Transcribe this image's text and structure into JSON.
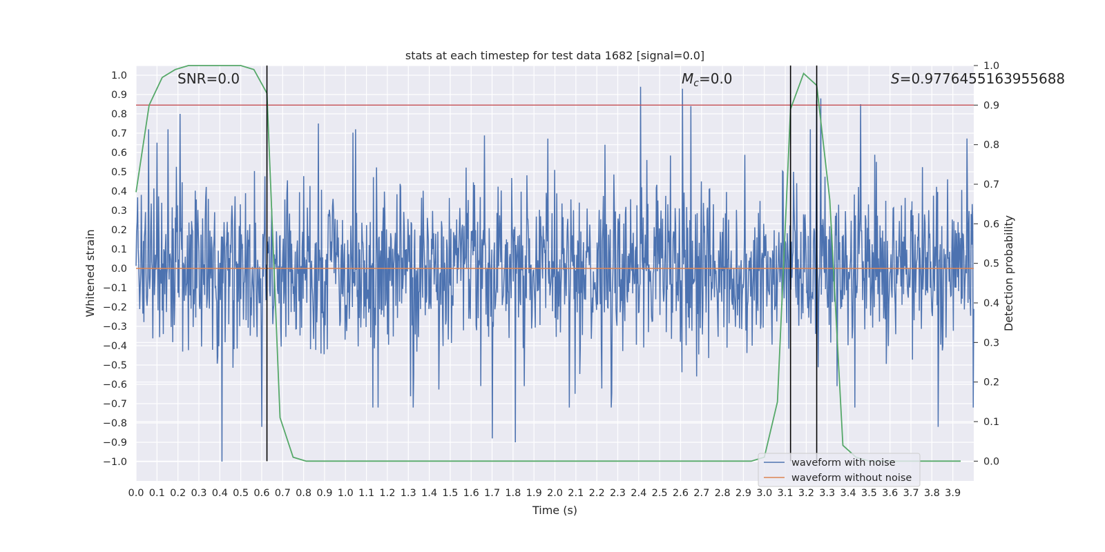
{
  "chart_data": {
    "type": "line",
    "title": "stats at each timestep for test data 1682 [signal=0.0]",
    "xlabel": "Time (s)",
    "ylabel": "Whitened strain",
    "y2label": "Detection probability",
    "xlim": [
      0.0,
      4.0
    ],
    "ylim": [
      -1.1,
      1.05
    ],
    "y2lim": [
      -0.05,
      1.0
    ],
    "x_ticks": [
      "0.0",
      "0.1",
      "0.2",
      "0.3",
      "0.4",
      "0.5",
      "0.6",
      "0.7",
      "0.8",
      "0.9",
      "1.0",
      "1.1",
      "1.2",
      "1.3",
      "1.4",
      "1.5",
      "1.6",
      "1.7",
      "1.8",
      "1.9",
      "2.0",
      "2.1",
      "2.2",
      "2.3",
      "2.4",
      "2.5",
      "2.6",
      "2.7",
      "2.8",
      "2.9",
      "3.0",
      "3.1",
      "3.2",
      "3.3",
      "3.4",
      "3.5",
      "3.6",
      "3.7",
      "3.8",
      "3.9"
    ],
    "y_ticks": [
      "1.0",
      "0.9",
      "0.8",
      "0.7",
      "0.6",
      "0.5",
      "0.4",
      "0.3",
      "0.2",
      "0.1",
      "0.0",
      "−0.1",
      "−0.2",
      "−0.3",
      "−0.4",
      "−0.5",
      "−0.6",
      "−0.7",
      "−0.8",
      "−0.9",
      "−1.0"
    ],
    "y2_ticks": [
      "1.0",
      "0.9",
      "0.8",
      "0.7",
      "0.6",
      "0.5",
      "0.4",
      "0.3",
      "0.2",
      "0.1",
      "0.0"
    ],
    "grid": true,
    "legend_position": "bottom-right",
    "annotations": {
      "snr_text": "SNR=0.0",
      "mc_symbol": "M",
      "mc_subscript": "c",
      "mc_value": "=0.0",
      "s_symbol": "S",
      "s_value": "=0.9776455163955688"
    },
    "series": [
      {
        "name": "waveform with noise",
        "color": "#4c72b0",
        "axis": "left",
        "description_kind": "noise",
        "sample_count": 1600,
        "spikes": [
          {
            "x": 0.21,
            "y": 0.8
          },
          {
            "x": 0.41,
            "y": -1.0
          },
          {
            "x": 0.87,
            "y": 0.75
          },
          {
            "x": 1.7,
            "y": -0.88
          },
          {
            "x": 1.81,
            "y": -0.9
          },
          {
            "x": 2.41,
            "y": 0.94
          },
          {
            "x": 2.61,
            "y": 0.93
          },
          {
            "x": 2.65,
            "y": 0.84
          },
          {
            "x": 3.27,
            "y": 0.88
          },
          {
            "x": 3.46,
            "y": 0.85
          },
          {
            "x": 3.83,
            "y": -0.82
          },
          {
            "x": 0.6,
            "y": -0.82
          },
          {
            "x": 3.25,
            "y": 0.87
          }
        ]
      },
      {
        "name": "waveform without noise",
        "color": "#dd8452",
        "axis": "left",
        "x": [
          0.0,
          4.0
        ],
        "y": [
          0.0,
          0.0
        ]
      },
      {
        "name": "",
        "color": "#55a868",
        "axis": "right",
        "x": [
          0.0,
          0.0625,
          0.125,
          0.1875,
          0.25,
          0.3125,
          0.375,
          0.4375,
          0.5,
          0.5625,
          0.625,
          0.6875,
          0.75,
          0.8125,
          0.875,
          0.9375,
          1.0,
          1.5,
          2.0,
          2.5,
          2.9,
          2.9375,
          3.0,
          3.0625,
          3.125,
          3.1875,
          3.25,
          3.3125,
          3.375,
          3.4375,
          3.5,
          3.6,
          3.7,
          3.8,
          3.9375
        ],
        "y": [
          0.68,
          0.9,
          0.97,
          0.99,
          1.0,
          1.0,
          1.0,
          1.0,
          1.0,
          0.99,
          0.93,
          0.11,
          0.01,
          0.0,
          0.0,
          0.0,
          0.0,
          0.0,
          0.0,
          0.0,
          0.0,
          0.0,
          0.01,
          0.15,
          0.89,
          0.98,
          0.95,
          0.66,
          0.04,
          0.01,
          0.0,
          0.0,
          0.0,
          0.0,
          0.0
        ]
      }
    ],
    "threshold_line": {
      "color": "#c44e52",
      "y2": 0.9
    },
    "vertical_lines": [
      0.625,
      3.125,
      3.25
    ]
  }
}
